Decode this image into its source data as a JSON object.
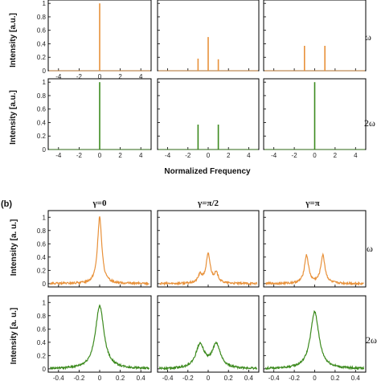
{
  "figure": {
    "panel_b_label": "(b)",
    "x_axis_label_a": "Normalized Frequency",
    "y_axis_label": "Intensity [a.u.]",
    "y_axis_label_b": "Intensity [a. u.]",
    "row_labels": [
      "ω",
      "2ω"
    ],
    "column_titles_b": [
      "γ=0",
      "γ=π/2",
      "γ=π"
    ]
  },
  "colors": {
    "omega": "#e8913a",
    "two_omega": "#3c8a1e",
    "axis": "#000000"
  },
  "chart_data": [
    {
      "type": "bar",
      "panel": "a",
      "row": "ω",
      "column": 1,
      "x": [
        0
      ],
      "values": [
        1.0
      ],
      "xlim": [
        -5,
        5
      ],
      "ylim": [
        0,
        1.05
      ],
      "xticks": [
        -4,
        -2,
        0,
        2,
        4
      ],
      "yticks": [
        0.0,
        0.2,
        0.4,
        0.6,
        0.8,
        1.0
      ]
    },
    {
      "type": "bar",
      "panel": "a",
      "row": "ω",
      "column": 2,
      "x": [
        -1,
        0,
        1
      ],
      "values": [
        0.18,
        0.5,
        0.17
      ],
      "xlim": [
        -5,
        5
      ],
      "ylim": [
        0,
        1.05
      ]
    },
    {
      "type": "bar",
      "panel": "a",
      "row": "ω",
      "column": 3,
      "x": [
        -1,
        1
      ],
      "values": [
        0.37,
        0.37
      ],
      "xlim": [
        -5,
        5
      ],
      "ylim": [
        0,
        1.05
      ]
    },
    {
      "type": "bar",
      "panel": "a",
      "row": "2ω",
      "column": 1,
      "x": [
        0
      ],
      "values": [
        1.0
      ],
      "xlim": [
        -5,
        5
      ],
      "ylim": [
        0,
        1.05
      ],
      "xticks": [
        -4,
        -2,
        0,
        2,
        4
      ],
      "yticks": [
        0.0,
        0.2,
        0.4,
        0.6,
        0.8,
        1.0
      ]
    },
    {
      "type": "bar",
      "panel": "a",
      "row": "2ω",
      "column": 2,
      "x": [
        -1,
        1
      ],
      "values": [
        0.37,
        0.37
      ],
      "xlim": [
        -5,
        5
      ],
      "ylim": [
        0,
        1.05
      ],
      "xticks": [
        -4,
        -2,
        0,
        2,
        4
      ]
    },
    {
      "type": "bar",
      "panel": "a",
      "row": "2ω",
      "column": 3,
      "x": [
        0
      ],
      "values": [
        1.0
      ],
      "xlim": [
        -5,
        5
      ],
      "ylim": [
        0,
        1.05
      ],
      "xticks": [
        -4,
        -2,
        0,
        2,
        4
      ]
    },
    {
      "type": "line",
      "panel": "b",
      "row": "ω",
      "column": 1,
      "title": "γ=0",
      "peaks": [
        {
          "x": 0.0,
          "height": 1.0,
          "width": 0.025
        }
      ],
      "xlim": [
        -0.5,
        0.5
      ],
      "ylim": [
        -0.05,
        1.1
      ],
      "yticks": [
        0.0,
        0.2,
        0.4,
        0.6,
        0.8,
        1.0
      ]
    },
    {
      "type": "line",
      "panel": "b",
      "row": "ω",
      "column": 2,
      "title": "γ=π/2",
      "peaks": [
        {
          "x": -0.08,
          "height": 0.12,
          "width": 0.025
        },
        {
          "x": 0.0,
          "height": 0.43,
          "width": 0.025
        },
        {
          "x": 0.08,
          "height": 0.14,
          "width": 0.025
        }
      ],
      "xlim": [
        -0.5,
        0.5
      ],
      "ylim": [
        -0.05,
        1.1
      ]
    },
    {
      "type": "line",
      "panel": "b",
      "row": "ω",
      "column": 3,
      "title": "γ=π",
      "peaks": [
        {
          "x": -0.08,
          "height": 0.42,
          "width": 0.025
        },
        {
          "x": 0.08,
          "height": 0.42,
          "width": 0.025
        }
      ],
      "xlim": [
        -0.5,
        0.5
      ],
      "ylim": [
        -0.05,
        1.1
      ]
    },
    {
      "type": "line",
      "panel": "b",
      "row": "2ω",
      "column": 1,
      "peaks": [
        {
          "x": 0.0,
          "height": 0.95,
          "width": 0.05
        }
      ],
      "xlim": [
        -0.5,
        0.5
      ],
      "ylim": [
        -0.05,
        1.1
      ],
      "xticks": [
        -0.4,
        -0.2,
        0.0,
        0.2,
        0.4
      ],
      "yticks": [
        0.0,
        0.2,
        0.4,
        0.6,
        0.8,
        1.0
      ]
    },
    {
      "type": "line",
      "panel": "b",
      "row": "2ω",
      "column": 2,
      "peaks": [
        {
          "x": -0.08,
          "height": 0.36,
          "width": 0.05
        },
        {
          "x": 0.08,
          "height": 0.36,
          "width": 0.05
        }
      ],
      "xlim": [
        -0.5,
        0.5
      ],
      "ylim": [
        -0.05,
        1.1
      ],
      "xticks": [
        -0.4,
        -0.2,
        0.0,
        0.2,
        0.4
      ]
    },
    {
      "type": "line",
      "panel": "b",
      "row": "2ω",
      "column": 3,
      "peaks": [
        {
          "x": 0.0,
          "height": 0.86,
          "width": 0.05
        }
      ],
      "xlim": [
        -0.5,
        0.5
      ],
      "ylim": [
        -0.05,
        1.1
      ],
      "xticks": [
        -0.4,
        -0.2,
        0.0,
        0.2,
        0.4
      ]
    }
  ]
}
